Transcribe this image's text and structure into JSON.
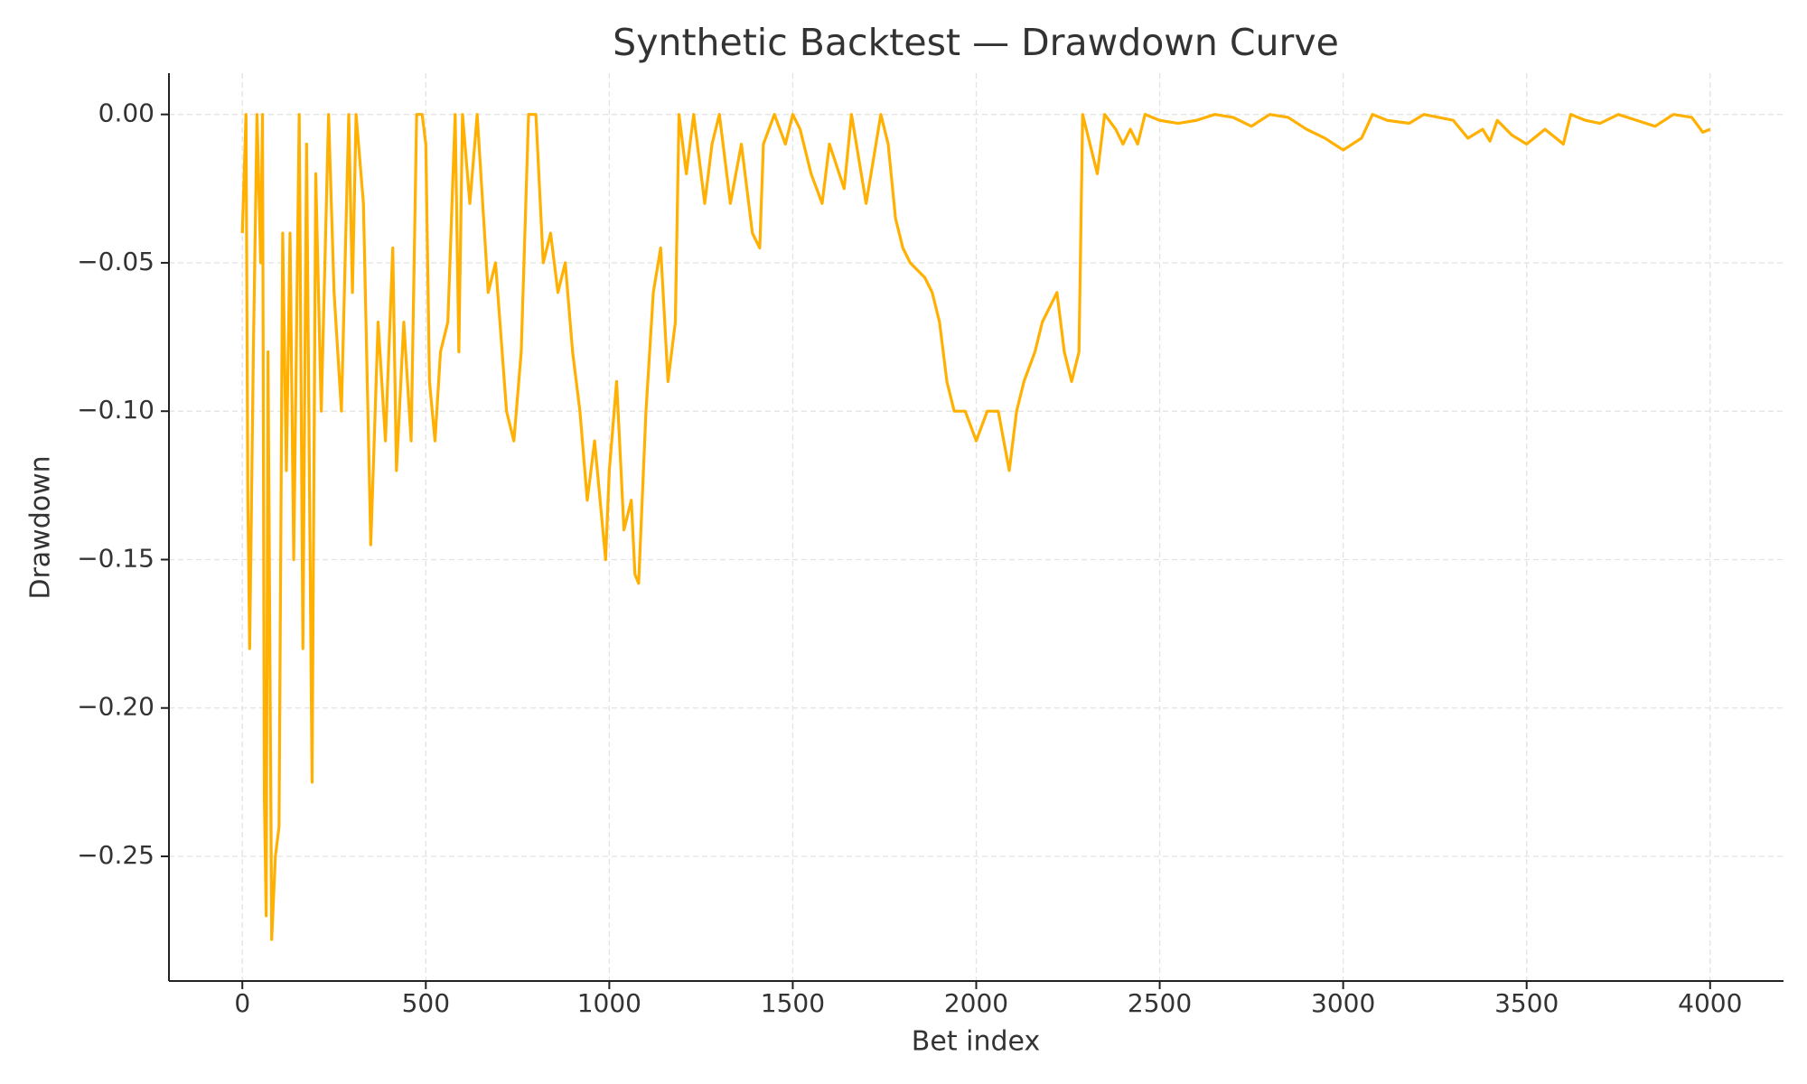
{
  "chart_data": {
    "type": "line",
    "title": "Synthetic Backtest — Drawdown Curve",
    "x_label": "Bet index",
    "y_label": "Drawdown",
    "xlim": [
      -200,
      4200
    ],
    "ylim": [
      -0.292,
      0.0139
    ],
    "xticks": [
      0,
      500,
      1000,
      1500,
      2000,
      2500,
      3000,
      3500,
      4000
    ],
    "yticks": [
      {
        "value": 0,
        "label": "0.00"
      },
      {
        "value": -0.05,
        "label": "−0.05"
      },
      {
        "value": -0.1,
        "label": "−0.10"
      },
      {
        "value": -0.15,
        "label": "−0.15"
      },
      {
        "value": -0.2,
        "label": "−0.20"
      },
      {
        "value": -0.25,
        "label": "−0.25"
      }
    ],
    "grid": true,
    "x": [
      0,
      10,
      15,
      20,
      30,
      40,
      50,
      55,
      60,
      65,
      70,
      80,
      90,
      100,
      110,
      120,
      130,
      140,
      155,
      165,
      175,
      190,
      200,
      215,
      235,
      250,
      270,
      290,
      300,
      310,
      330,
      350,
      370,
      390,
      410,
      420,
      440,
      460,
      475,
      490,
      500,
      510,
      525,
      540,
      560,
      580,
      590,
      600,
      620,
      640,
      660,
      670,
      690,
      720,
      740,
      760,
      780,
      800,
      820,
      840,
      860,
      880,
      900,
      920,
      940,
      960,
      990,
      1000,
      1020,
      1040,
      1060,
      1070,
      1080,
      1100,
      1120,
      1140,
      1160,
      1180,
      1190,
      1210,
      1230,
      1260,
      1280,
      1300,
      1330,
      1360,
      1390,
      1410,
      1420,
      1450,
      1480,
      1500,
      1520,
      1550,
      1580,
      1600,
      1640,
      1660,
      1700,
      1740,
      1760,
      1780,
      1800,
      1820,
      1860,
      1880,
      1900,
      1920,
      1940,
      1970,
      2000,
      2030,
      2060,
      2090,
      2110,
      2130,
      2160,
      2180,
      2220,
      2240,
      2260,
      2280,
      2290,
      2310,
      2330,
      2350,
      2380,
      2400,
      2420,
      2440,
      2460,
      2500,
      2550,
      2600,
      2650,
      2700,
      2750,
      2800,
      2850,
      2900,
      2950,
      3000,
      3050,
      3080,
      3120,
      3180,
      3220,
      3300,
      3340,
      3380,
      3400,
      3420,
      3460,
      3500,
      3550,
      3600,
      3620,
      3660,
      3700,
      3750,
      3800,
      3850,
      3900,
      3950,
      3980,
      4000
    ],
    "series": [
      {
        "name": "Drawdown",
        "color": "#ffb000",
        "values": [
          -0.04,
          0,
          -0.13,
          -0.18,
          -0.08,
          0,
          -0.05,
          0,
          -0.23,
          -0.27,
          -0.08,
          -0.278,
          -0.25,
          -0.24,
          -0.04,
          -0.12,
          -0.04,
          -0.15,
          0,
          -0.18,
          -0.01,
          -0.225,
          -0.02,
          -0.1,
          0,
          -0.06,
          -0.1,
          0,
          -0.06,
          0,
          -0.03,
          -0.145,
          -0.07,
          -0.11,
          -0.045,
          -0.12,
          -0.07,
          -0.11,
          0,
          0,
          -0.01,
          -0.09,
          -0.11,
          -0.08,
          -0.07,
          0,
          -0.08,
          0,
          -0.03,
          0,
          -0.04,
          -0.06,
          -0.05,
          -0.1,
          -0.11,
          -0.08,
          0,
          0,
          -0.05,
          -0.04,
          -0.06,
          -0.05,
          -0.08,
          -0.1,
          -0.13,
          -0.11,
          -0.15,
          -0.12,
          -0.09,
          -0.14,
          -0.13,
          -0.155,
          -0.158,
          -0.1,
          -0.06,
          -0.045,
          -0.09,
          -0.07,
          0,
          -0.02,
          0,
          -0.03,
          -0.01,
          0,
          -0.03,
          -0.01,
          -0.04,
          -0.045,
          -0.01,
          0,
          -0.01,
          0,
          -0.005,
          -0.02,
          -0.03,
          -0.01,
          -0.025,
          0,
          -0.03,
          0,
          -0.01,
          -0.035,
          -0.045,
          -0.05,
          -0.055,
          -0.06,
          -0.07,
          -0.09,
          -0.1,
          -0.1,
          -0.11,
          -0.1,
          -0.1,
          -0.12,
          -0.1,
          -0.09,
          -0.08,
          -0.07,
          -0.06,
          -0.08,
          -0.09,
          -0.08,
          0,
          -0.01,
          -0.02,
          0,
          -0.005,
          -0.01,
          -0.005,
          -0.01,
          0,
          -0.002,
          -0.003,
          -0.002,
          0,
          -0.001,
          -0.004,
          0,
          -0.001,
          -0.005,
          -0.008,
          -0.012,
          -0.008,
          0,
          -0.002,
          -0.003,
          0,
          -0.002,
          -0.008,
          -0.005,
          -0.009,
          -0.002,
          -0.007,
          -0.01,
          -0.005,
          -0.01,
          0,
          -0.002,
          -0.003,
          0,
          -0.002,
          -0.004,
          0,
          -0.001,
          -0.006,
          -0.005
        ]
      }
    ]
  }
}
